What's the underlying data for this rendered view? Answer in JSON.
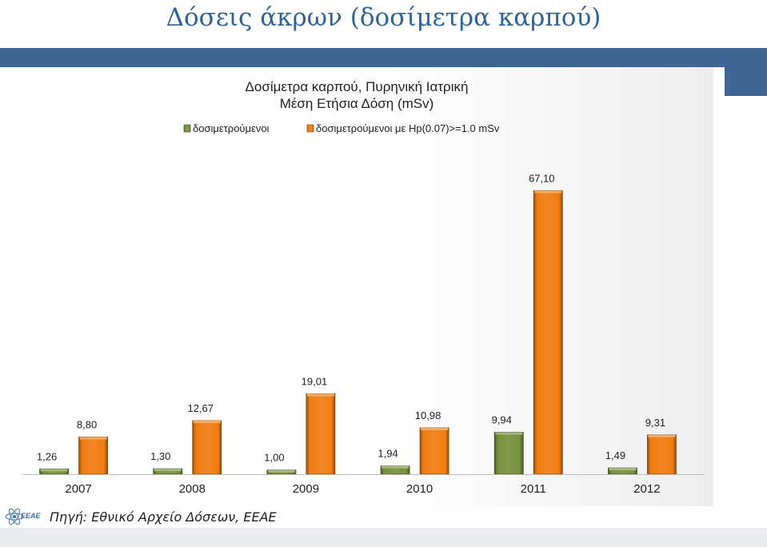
{
  "slide": {
    "title": "Δόσεις άκρων (δοσίμετρα καρπού)",
    "source": "Πηγή: Εθνικό Αρχείο Δόσεων, ΕΕΑΕ",
    "logo_text": "ΕΕΑΕ"
  },
  "colors": {
    "title": "#2e6499",
    "band": "#3d6694",
    "series1": "#76923c",
    "series2": "#f07d11"
  },
  "chart_data": {
    "type": "bar",
    "title": "Δοσίμετρα καρπού, Πυρηνική Ιατρική",
    "subtitle": "Μέση Ετήσια Δόση (mSv)",
    "categories": [
      "2007",
      "2008",
      "2009",
      "2010",
      "2011",
      "2012"
    ],
    "series": [
      {
        "name": "δοσιμετρούμενοι",
        "values": [
          1.26,
          1.3,
          1.0,
          1.94,
          9.94,
          1.49
        ],
        "labels": [
          "1,26",
          "1,30",
          "1,00",
          "1,94",
          "9,94",
          "1,49"
        ],
        "color": "#76923c"
      },
      {
        "name": "δοσιμετρούμενοι με Hp(0.07)>=1.0 mSv",
        "values": [
          8.8,
          12.67,
          19.01,
          10.98,
          67.1,
          9.31
        ],
        "labels": [
          "8,80",
          "12,67",
          "19,01",
          "10,98",
          "67,10",
          "9,31"
        ],
        "color": "#f07d11"
      }
    ],
    "ylim": [
      0,
      70
    ],
    "grid": false,
    "legend_position": "top"
  }
}
